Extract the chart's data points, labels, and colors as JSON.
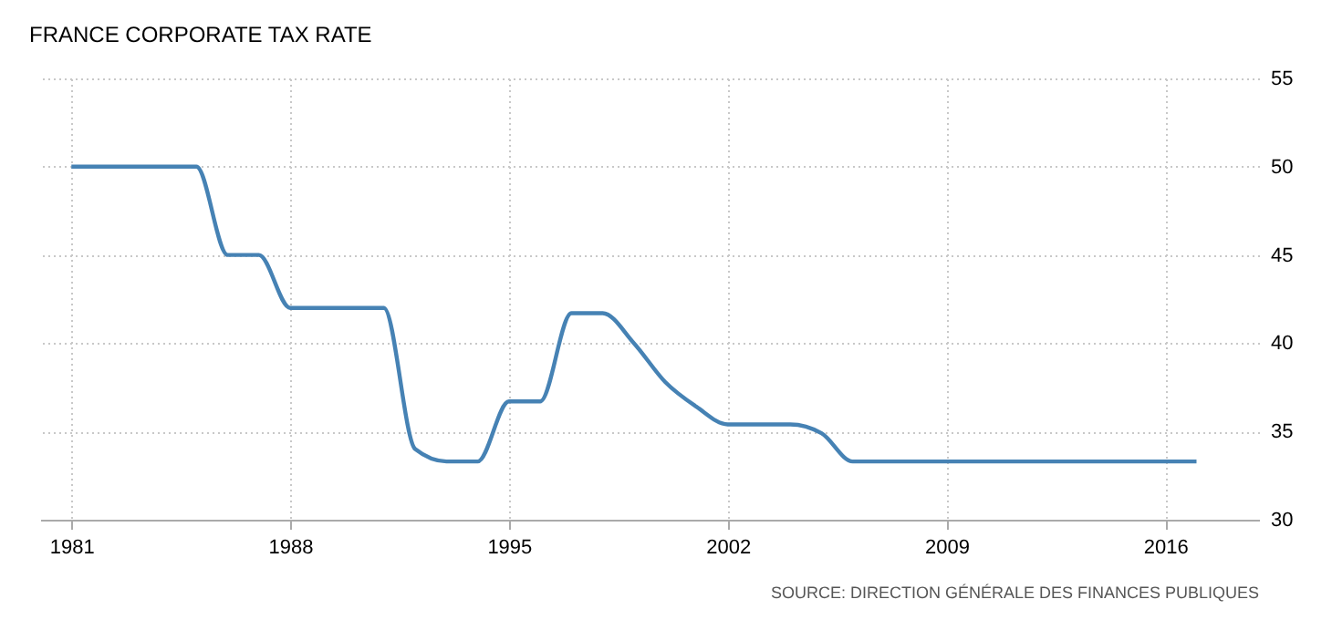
{
  "chart_data": {
    "type": "line",
    "title": "FRANCE CORPORATE TAX RATE",
    "annotations": [
      "SOURCE: DIRECTION GÉNÉRALE DES FINANCES PUBLIQUES"
    ],
    "x": [
      1981,
      1982,
      1983,
      1984,
      1985,
      1986,
      1987,
      1988,
      1989,
      1990,
      1991,
      1992,
      1993,
      1994,
      1995,
      1996,
      1997,
      1998,
      1999,
      2000,
      2001,
      2002,
      2003,
      2004,
      2005,
      2006,
      2007,
      2008,
      2009,
      2010,
      2011,
      2012,
      2013,
      2014,
      2015,
      2016,
      2017
    ],
    "series": [
      {
        "color": "#4682b4",
        "values": [
          50,
          50,
          50,
          50,
          50,
          45,
          45,
          42,
          42,
          42,
          42,
          34,
          33.3,
          33.3,
          36.7,
          36.7,
          41.7,
          41.7,
          40,
          37.8,
          36.4,
          35.4,
          35.4,
          35.4,
          34.9,
          33.3,
          33.3,
          33.3,
          33.3,
          33.3,
          33.3,
          33.3,
          33.3,
          33.3,
          33.3,
          33.3,
          33.3
        ]
      }
    ],
    "xlim": [
      1980,
      2019
    ],
    "xticks": [
      1981,
      1988,
      1995,
      2002,
      2009,
      2016
    ],
    "ylim": [
      30,
      55
    ],
    "yticks": [
      30,
      35,
      40,
      45,
      50,
      55
    ],
    "grid": true,
    "legend": false,
    "line_style": "solid",
    "marker": "none"
  }
}
